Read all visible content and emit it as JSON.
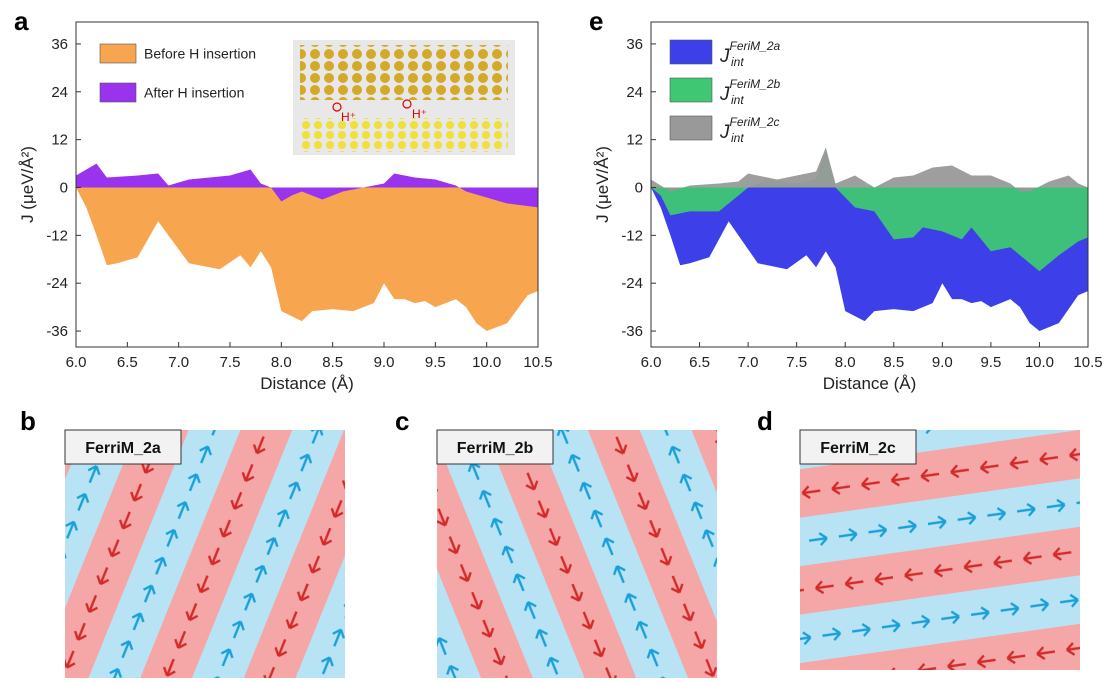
{
  "chart_data": [
    {
      "type": "area",
      "panel": "a",
      "xlabel": "Distance (Å)",
      "ylabel": "J (μeV/Å²)",
      "xlim": [
        6.0,
        10.5
      ],
      "ylim": [
        -40,
        41.5
      ],
      "xticks": [
        {
          "value": 6,
          "label": "6.0"
        },
        {
          "value": 6.5,
          "label": "6.5"
        },
        {
          "value": 7,
          "label": "7.0"
        },
        {
          "value": 7.5,
          "label": "7.5"
        },
        {
          "value": 8,
          "label": "8.0"
        },
        {
          "value": 8.5,
          "label": "8.5"
        },
        {
          "value": 9,
          "label": "9.0"
        },
        {
          "value": 9.5,
          "label": "9.5"
        },
        {
          "value": 10,
          "label": "10.0"
        },
        {
          "value": 10.5,
          "label": "10.5"
        }
      ],
      "yticks": [
        -36,
        -24,
        -12,
        0,
        12,
        24,
        36
      ],
      "inset_labels": [
        "H⁺",
        "H⁺"
      ],
      "series": [
        {
          "name": "Before H insertion",
          "color": "#f7a54e",
          "x": [
            6.0,
            6.1,
            6.2,
            6.3,
            6.4,
            6.6,
            6.7,
            6.8,
            6.9,
            7.1,
            7.3,
            7.4,
            7.6,
            7.7,
            7.8,
            7.9,
            8.0,
            8.2,
            8.3,
            8.5,
            8.7,
            8.9,
            9.0,
            9.1,
            9.2,
            9.3,
            9.4,
            9.5,
            9.6,
            9.7,
            9.8,
            9.9,
            10.0,
            10.2,
            10.4,
            10.5
          ],
          "values": [
            0,
            -5,
            -12,
            -19.5,
            -19,
            -17.5,
            -13,
            -8.5,
            -12,
            -19,
            -20,
            -20.5,
            -17,
            -20,
            -16,
            -20,
            -31,
            -33.5,
            -31,
            -30.5,
            -31,
            -29,
            -24,
            -28,
            -28,
            -29,
            -28.5,
            -30,
            -29,
            -28,
            -30,
            -34,
            -36,
            -34,
            -27,
            -26
          ]
        },
        {
          "name": "After H insertion",
          "color": "#9933ee",
          "x": [
            6.0,
            6.2,
            6.3,
            6.6,
            6.8,
            6.9,
            7.1,
            7.5,
            7.7,
            7.8,
            7.9,
            8.0,
            8.1,
            8.2,
            8.4,
            8.6,
            8.8,
            9.0,
            9.1,
            9.3,
            9.5,
            9.7,
            9.8,
            10.0,
            10.2,
            10.5
          ],
          "values": [
            3,
            6,
            2.5,
            3,
            3.5,
            0.5,
            2,
            3,
            4.5,
            1,
            0,
            -3.5,
            -2,
            -1,
            -3,
            -1,
            0,
            1,
            3.5,
            2.5,
            2,
            0.5,
            -1,
            -2.5,
            -4,
            -5
          ]
        }
      ]
    },
    {
      "type": "area",
      "panel": "e",
      "xlabel": "Distance (Å)",
      "ylabel": "J (μeV/Å²)",
      "legend_symbol": "J",
      "legend_subscript": "int",
      "xlim": [
        6.0,
        10.5
      ],
      "ylim": [
        -40,
        41.5
      ],
      "xticks": [
        {
          "value": 6,
          "label": "6.0"
        },
        {
          "value": 6.5,
          "label": "6.5"
        },
        {
          "value": 7,
          "label": "7.0"
        },
        {
          "value": 7.5,
          "label": "7.5"
        },
        {
          "value": 8,
          "label": "8.0"
        },
        {
          "value": 8.5,
          "label": "8.5"
        },
        {
          "value": 9,
          "label": "9.0"
        },
        {
          "value": 9.5,
          "label": "9.5"
        },
        {
          "value": 10,
          "label": "10.0"
        },
        {
          "value": 10.5,
          "label": "10.5"
        }
      ],
      "yticks": [
        -36,
        -24,
        -12,
        0,
        12,
        24,
        36
      ],
      "series": [
        {
          "name": "FeriM_2a",
          "color": "#3d3fe8",
          "x": [
            6.0,
            6.1,
            6.2,
            6.3,
            6.4,
            6.6,
            6.7,
            6.8,
            6.9,
            7.1,
            7.3,
            7.4,
            7.6,
            7.7,
            7.8,
            7.9,
            8.0,
            8.2,
            8.3,
            8.5,
            8.7,
            8.9,
            9.0,
            9.1,
            9.2,
            9.3,
            9.4,
            9.5,
            9.6,
            9.7,
            9.8,
            9.9,
            10.0,
            10.2,
            10.4,
            10.5
          ],
          "values": [
            0,
            -5,
            -12,
            -19.5,
            -19,
            -17.5,
            -13,
            -8.5,
            -12,
            -19,
            -20,
            -20.5,
            -17,
            -20,
            -16,
            -20,
            -31,
            -33.5,
            -31,
            -30.5,
            -31,
            -29,
            -24,
            -28,
            -28,
            -29,
            -28.5,
            -30,
            -29,
            -28,
            -30,
            -34,
            -36,
            -34,
            -27,
            -26
          ]
        },
        {
          "name": "FeriM_2b",
          "color": "#3fc774",
          "x": [
            6.0,
            6.1,
            6.2,
            6.4,
            6.7,
            6.9,
            7.0,
            7.2,
            7.5,
            7.7,
            7.8,
            7.9,
            8.1,
            8.3,
            8.5,
            8.7,
            8.8,
            9.0,
            9.2,
            9.3,
            9.5,
            9.7,
            9.9,
            10.0,
            10.2,
            10.4,
            10.5
          ],
          "values": [
            0,
            -2,
            -7,
            -6,
            -6,
            -2,
            0,
            2,
            1,
            2,
            10,
            0,
            -5,
            -6,
            -13,
            -12.5,
            -10,
            -11,
            -13,
            -10,
            -16,
            -15,
            -19,
            -21,
            -17,
            -13.5,
            -12.5
          ]
        },
        {
          "name": "FeriM_2c",
          "color": "#999999",
          "x": [
            6.0,
            6.2,
            6.4,
            6.7,
            6.9,
            7.0,
            7.3,
            7.5,
            7.7,
            7.8,
            7.9,
            8.1,
            8.3,
            8.5,
            8.7,
            8.9,
            9.1,
            9.3,
            9.5,
            9.7,
            9.8,
            9.9,
            10.1,
            10.3,
            10.4,
            10.5
          ],
          "values": [
            2,
            -1,
            0.5,
            1,
            1.5,
            3.5,
            2,
            3,
            4,
            10,
            1,
            3,
            0,
            2.5,
            3,
            5,
            5.5,
            3,
            3,
            1,
            -1,
            -1,
            1.5,
            3,
            1,
            0
          ]
        }
      ]
    }
  ],
  "panels": [
    {
      "letter": "b",
      "label": "FerriM_2a"
    },
    {
      "letter": "c",
      "label": "FerriM_2b"
    },
    {
      "letter": "d",
      "label": "FerriM_2c"
    }
  ]
}
